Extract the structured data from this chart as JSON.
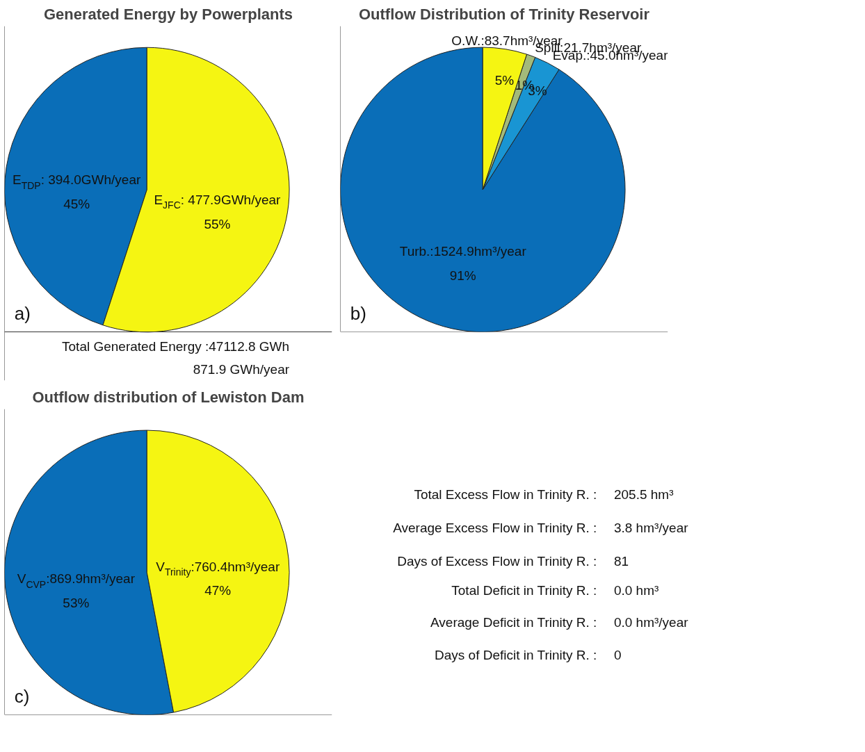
{
  "chart_data": [
    {
      "type": "pie",
      "title": "Generated Energy by Powerplants",
      "categories": [
        "E$_{TDP}$: 394.0GWh/year",
        "E$_{JFC}$: 477.9GWh/year"
      ],
      "values": [
        45,
        55
      ],
      "colors": [
        "#0a6eb8",
        "#f5f512"
      ],
      "value_labels": [
        "45%",
        "55%"
      ],
      "annotations": [
        "a)",
        "Total Generated Energy :47112.8 GWh",
        "871.9 GWh/year"
      ]
    },
    {
      "type": "pie",
      "title": "Outflow Distribution of Trinity Reservoir",
      "categories": [
        "Turb.:1524.9hm³/year",
        "Evap.:45.0hm³/year",
        "Spill:21.7hm³/year",
        "O.W.:83.7hm³/year"
      ],
      "values": [
        91,
        3,
        1,
        5
      ],
      "colors": [
        "#0a6eb8",
        "#1995d3",
        "#a3ba7a",
        "#f5f512"
      ],
      "value_labels": [
        "91%",
        "3%",
        "1%",
        "5%"
      ],
      "annotations": [
        "b)"
      ]
    },
    {
      "type": "pie",
      "title": "Outflow distribution of Lewiston Dam",
      "categories": [
        "V$_{CVP}$:869.9hm³/year",
        "V$_{Trinity}$:760.4hm³/year"
      ],
      "values": [
        53,
        47
      ],
      "colors": [
        "#0a6eb8",
        "#f5f512"
      ],
      "value_labels": [
        "53%",
        "47%"
      ],
      "annotations": [
        "c)"
      ]
    },
    {
      "type": "other",
      "annotations": [
        "Total Excess Flow in Trinity R. :",
        "205.5 hm³",
        "Average Excess Flow in Trinity R. :",
        "3.8 hm³/year",
        "Days of Excess Flow in Trinity R. :",
        "81",
        "Total Deficit in Trinity R. :",
        "0.0 hm³",
        "Average Deficit in Trinity R. :",
        "0.0 hm³/year",
        "Days of Deficit in Trinity R. :",
        "0"
      ]
    }
  ]
}
